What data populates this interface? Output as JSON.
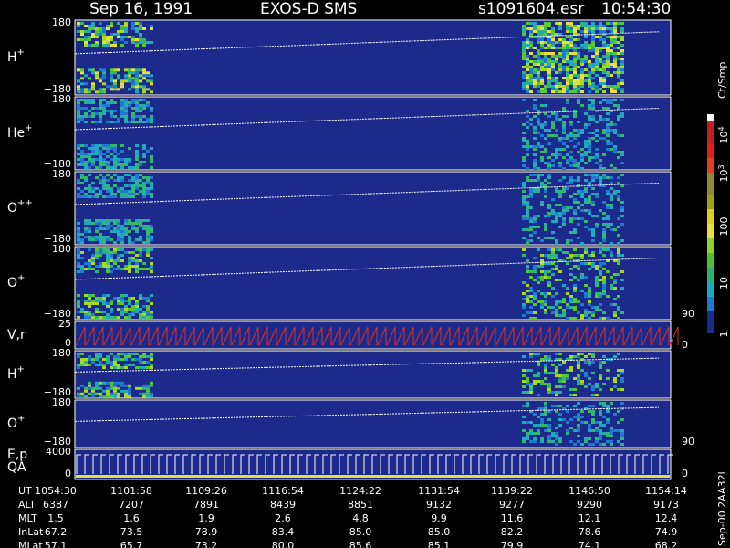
{
  "header": {
    "date": "Sep 16, 1991",
    "instrument": "EXOS-D SMS",
    "file": "s1091604.esr",
    "time": "10:54:30"
  },
  "panels": [
    {
      "label": "H",
      "sup": "+",
      "ticks": [
        "180",
        "−180"
      ]
    },
    {
      "label": "He",
      "sup": "+",
      "ticks": [
        "180",
        "−180"
      ]
    },
    {
      "label": "O",
      "sup": "++",
      "ticks": [
        "180",
        "−180"
      ]
    },
    {
      "label": "O",
      "sup": "+",
      "ticks": [
        "180",
        "−180"
      ],
      "right_ticks": [
        "90"
      ]
    },
    {
      "label": "V,r",
      "ticks": [
        "25",
        "0"
      ],
      "right_ticks": [
        "0"
      ]
    },
    {
      "label": "H",
      "sup": "+",
      "ticks": [
        "180",
        "−180"
      ]
    },
    {
      "label": "O",
      "sup": "+",
      "ticks": [
        "180",
        "−180"
      ],
      "right_ticks": [
        "90"
      ]
    },
    {
      "label": "E,p",
      "label2": "QA",
      "ticks": [
        "4000",
        "0"
      ],
      "right_ticks": [
        "0"
      ]
    }
  ],
  "colorbar": {
    "unit": "Ct/Smp",
    "labels": [
      {
        "base": "10",
        "exp": "4"
      },
      {
        "base": "10",
        "exp": "3"
      },
      {
        "base": "100"
      },
      {
        "base": "10"
      },
      {
        "base": "1"
      }
    ]
  },
  "table": {
    "rows": [
      {
        "label": "UT",
        "values": [
          "1054:30",
          "1101:58",
          "1109:26",
          "1116:54",
          "1124:22",
          "1131:54",
          "1139:22",
          "1146:50",
          "1154:14"
        ]
      },
      {
        "label": "ALT",
        "values": [
          "6387",
          "7207",
          "7891",
          "8439",
          "8851",
          "9132",
          "9277",
          "9290",
          "9173"
        ]
      },
      {
        "label": "MLT",
        "values": [
          "1.5",
          "1.6",
          "1.9",
          "2.6",
          "4.8",
          "9.9",
          "11.6",
          "12.1",
          "12.4"
        ]
      },
      {
        "label": "InLat",
        "values": [
          "67.2",
          "73.5",
          "78.9",
          "83.4",
          "85.0",
          "85.0",
          "82.2",
          "78.6",
          "74.9"
        ]
      },
      {
        "label": "MLat",
        "values": [
          "57.1",
          "65.7",
          "73.2",
          "80.0",
          "85.6",
          "85.1",
          "79.9",
          "74.1",
          "68.2"
        ]
      }
    ]
  },
  "footer": "Sep-00 2AA32L"
}
